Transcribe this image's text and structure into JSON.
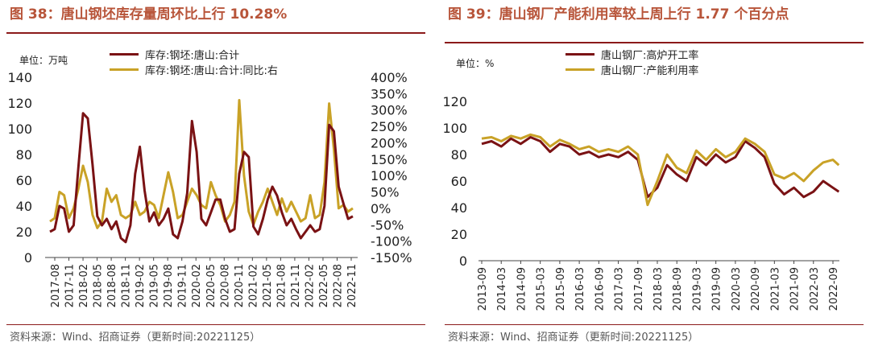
{
  "left": {
    "title": "图 38：唐山钢坯库存量周环比上行 10.28%",
    "unit": "单位：万吨",
    "source": "资料来源：Wind、招商证券（更新时间:20221125）",
    "chart_data": {
      "type": "line",
      "x_labels": [
        "2017-08",
        "2017-11",
        "2018-02",
        "2018-05",
        "2018-08",
        "2018-11",
        "2019-02",
        "2019-05",
        "2019-08",
        "2019-11",
        "2020-02",
        "2020-05",
        "2020-08",
        "2020-11",
        "2021-02",
        "2021-05",
        "2021-08",
        "2021-11",
        "2022-02",
        "2022-05",
        "2022-08",
        "2022-11"
      ],
      "ylim_left": [
        0,
        140
      ],
      "yticks_left": [
        "0",
        "20",
        "40",
        "60",
        "80",
        "100",
        "120",
        "140"
      ],
      "ylim_right": [
        -150,
        400
      ],
      "yticks_right": [
        "-150%",
        "-100%",
        "-50%",
        "0%",
        "50%",
        "100%",
        "150%",
        "200%",
        "250%",
        "300%",
        "350%",
        "400%"
      ],
      "grid": false,
      "legend_position": "top",
      "series": [
        {
          "name": "库存:钢坯:唐山:合计",
          "axis": "left",
          "color": "#7a1214",
          "x": [
            0,
            1,
            2,
            3,
            4,
            5,
            6,
            7,
            8,
            9,
            10,
            11,
            12,
            13,
            14,
            15,
            16,
            17,
            18,
            19,
            20,
            21,
            22,
            23,
            24,
            25,
            26,
            27,
            28,
            29,
            30,
            31,
            32,
            33,
            34,
            35,
            36,
            37,
            38,
            39,
            40,
            41,
            42,
            43,
            44,
            45,
            46,
            47,
            48,
            49,
            50,
            51,
            52,
            53,
            54,
            55,
            56,
            57,
            58,
            59,
            60,
            61,
            62,
            63,
            64
          ],
          "values": [
            20,
            22,
            40,
            38,
            20,
            25,
            70,
            112,
            108,
            72,
            32,
            25,
            30,
            22,
            28,
            15,
            12,
            25,
            65,
            86,
            52,
            28,
            35,
            25,
            30,
            38,
            18,
            15,
            28,
            50,
            106,
            82,
            30,
            25,
            35,
            45,
            45,
            30,
            20,
            22,
            65,
            82,
            78,
            24,
            18,
            30,
            45,
            55,
            48,
            35,
            25,
            30,
            22,
            15,
            20,
            25,
            20,
            22,
            40,
            103,
            98,
            55,
            42,
            30,
            32
          ]
        },
        {
          "name": "库存:钢坯:唐山:合计:同比:右",
          "axis": "right",
          "color": "#c9a227",
          "x": [
            0,
            1,
            2,
            3,
            4,
            5,
            6,
            7,
            8,
            9,
            10,
            11,
            12,
            13,
            14,
            15,
            16,
            17,
            18,
            19,
            20,
            21,
            22,
            23,
            24,
            25,
            26,
            27,
            28,
            29,
            30,
            31,
            32,
            33,
            34,
            35,
            36,
            37,
            38,
            39,
            40,
            41,
            42,
            43,
            44,
            45,
            46,
            47,
            48,
            49,
            50,
            51,
            52,
            53,
            54,
            55,
            56,
            57,
            58,
            59,
            60,
            61,
            62,
            63,
            64
          ],
          "values": [
            -40,
            -30,
            50,
            40,
            -30,
            0,
            60,
            130,
            80,
            -20,
            -60,
            -40,
            60,
            20,
            40,
            -20,
            -30,
            -20,
            20,
            -20,
            -10,
            20,
            10,
            -30,
            40,
            110,
            50,
            -30,
            -20,
            20,
            60,
            40,
            10,
            0,
            80,
            40,
            10,
            -40,
            -20,
            20,
            330,
            100,
            -10,
            -50,
            -10,
            20,
            60,
            20,
            -20,
            30,
            -10,
            20,
            -10,
            -40,
            -30,
            40,
            -30,
            -20,
            80,
            320,
            180,
            0,
            10,
            -10,
            0
          ]
        }
      ]
    }
  },
  "right": {
    "title": "图 39：唐山钢厂产能利用率较上周上行 1.77 个百分点",
    "unit": "单位：%",
    "source": "资料来源：Wind、招商证券（更新时间:20221125）",
    "chart_data": {
      "type": "line",
      "x_labels": [
        "2013-09",
        "2014-03",
        "2014-09",
        "2015-03",
        "2015-09",
        "2016-03",
        "2016-09",
        "2017-03",
        "2017-09",
        "2018-03",
        "2018-09",
        "2019-03",
        "2019-09",
        "2020-03",
        "2020-09",
        "2021-03",
        "2021-09",
        "2022-03",
        "2022-09"
      ],
      "ylim": [
        0,
        120
      ],
      "yticks": [
        "0",
        "20",
        "40",
        "60",
        "80",
        "100",
        "120"
      ],
      "grid": false,
      "legend_position": "top",
      "series": [
        {
          "name": "唐山钢厂:高炉开工率",
          "color": "#7a1214",
          "x": [
            0,
            0.5,
            1,
            1.5,
            2,
            2.5,
            3,
            3.5,
            4,
            4.5,
            5,
            5.5,
            6,
            6.5,
            7,
            7.5,
            8,
            8.5,
            9,
            9.5,
            10,
            10.5,
            11,
            11.5,
            12,
            12.5,
            13,
            13.5,
            14,
            14.5,
            15,
            15.5,
            16,
            16.5,
            17,
            17.5,
            18,
            18.3
          ],
          "values": [
            88,
            90,
            86,
            92,
            88,
            93,
            90,
            82,
            88,
            86,
            80,
            82,
            78,
            80,
            78,
            82,
            76,
            48,
            55,
            72,
            65,
            60,
            78,
            72,
            80,
            74,
            78,
            90,
            85,
            78,
            58,
            50,
            55,
            48,
            52,
            60,
            55,
            52
          ]
        },
        {
          "name": "唐山钢厂:产能利用率",
          "color": "#c9a227",
          "x": [
            0,
            0.5,
            1,
            1.5,
            2,
            2.5,
            3,
            3.5,
            4,
            4.5,
            5,
            5.5,
            6,
            6.5,
            7,
            7.5,
            8,
            8.5,
            9,
            9.5,
            10,
            10.5,
            11,
            11.5,
            12,
            12.5,
            13,
            13.5,
            14,
            14.5,
            15,
            15.5,
            16,
            16.5,
            17,
            17.5,
            18,
            18.3
          ],
          "values": [
            92,
            93,
            90,
            94,
            92,
            95,
            93,
            86,
            91,
            88,
            84,
            86,
            82,
            84,
            82,
            86,
            80,
            42,
            60,
            80,
            70,
            66,
            83,
            76,
            84,
            78,
            82,
            92,
            88,
            82,
            65,
            62,
            66,
            60,
            68,
            74,
            76,
            72
          ]
        }
      ]
    }
  }
}
